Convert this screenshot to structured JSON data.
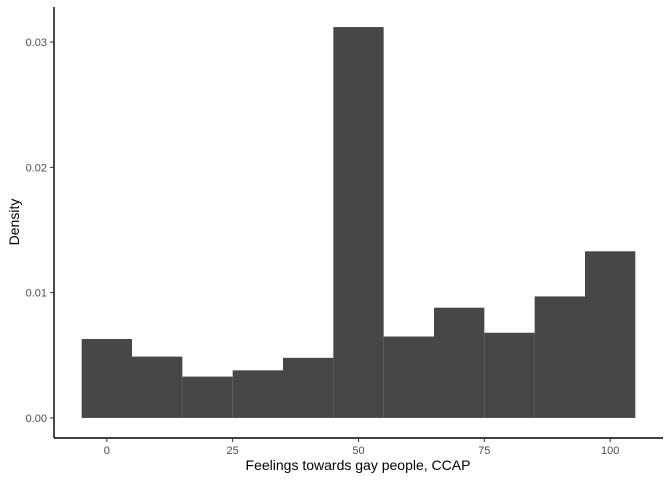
{
  "chart_data": {
    "type": "bar",
    "title": "",
    "xlabel": "Feelings towards gay people, CCAP",
    "ylabel": "Density",
    "bin_width": 10,
    "bins": [
      {
        "start": -5,
        "end": 5,
        "value": 0.0063
      },
      {
        "start": 5,
        "end": 15,
        "value": 0.0049
      },
      {
        "start": 15,
        "end": 25,
        "value": 0.0033
      },
      {
        "start": 25,
        "end": 35,
        "value": 0.0038
      },
      {
        "start": 35,
        "end": 45,
        "value": 0.0048
      },
      {
        "start": 45,
        "end": 55,
        "value": 0.0312
      },
      {
        "start": 55,
        "end": 65,
        "value": 0.0065
      },
      {
        "start": 65,
        "end": 75,
        "value": 0.0088
      },
      {
        "start": 75,
        "end": 85,
        "value": 0.0068
      },
      {
        "start": 85,
        "end": 95,
        "value": 0.0097
      },
      {
        "start": 95,
        "end": 105,
        "value": 0.0133
      }
    ],
    "xlim": [
      -10.5,
      110.5
    ],
    "ylim": [
      -0.0016,
      0.0328
    ],
    "x_ticks": [
      0,
      25,
      50,
      75,
      100
    ],
    "x_tick_labels": [
      "0",
      "25",
      "50",
      "75",
      "100"
    ],
    "y_ticks": [
      0,
      0.01,
      0.02,
      0.03
    ],
    "y_tick_labels": [
      "0.00",
      "0.01",
      "0.02",
      "0.03"
    ],
    "bar_color": "#474747",
    "background": "#ffffff",
    "grid": false,
    "legend": "none"
  }
}
